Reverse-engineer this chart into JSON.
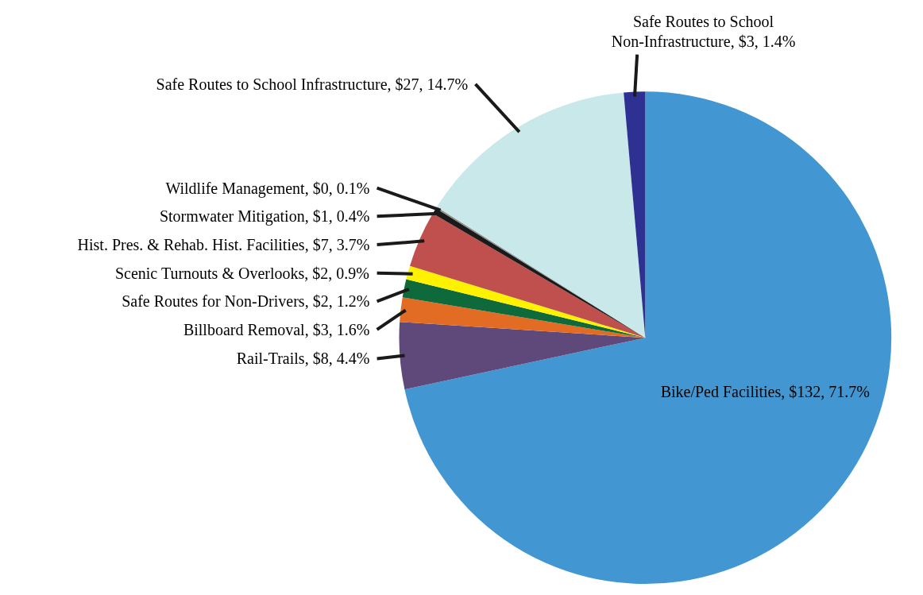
{
  "chart_data": {
    "type": "pie",
    "categories": [
      "Bike/Ped Facilities",
      "Rail-Trails",
      "Billboard Removal",
      "Safe Routes for Non-Drivers",
      "Scenic Turnouts & Overlooks",
      "Hist. Pres. & Rehab. Hist. Facilities",
      "Stormwater Mitigation",
      "Wildlife Management",
      "Safe Routes to School Infrastructure",
      "Safe Routes to School Non-Infrastructure"
    ],
    "values": [
      71.7,
      4.4,
      1.6,
      1.2,
      0.9,
      3.7,
      0.4,
      0.1,
      14.7,
      1.4
    ],
    "value_labels": [
      "$132, 71.7%",
      "$8, 4.4%",
      "$3, 1.6%",
      "$2, 1.2%",
      "$2, 0.9%",
      "$7, 3.7%",
      "$1, 0.4%",
      "$0, 0.1%",
      "$27, 14.7%",
      "$3, 1.4%"
    ],
    "colors": [
      "#4297d3",
      "#5f497a",
      "#e36c24",
      "#0e6a3a",
      "#fff200",
      "#c0504d",
      "#1a1a1a",
      "#8c8c8c",
      "#c8e8ea",
      "#2e3192"
    ]
  }
}
